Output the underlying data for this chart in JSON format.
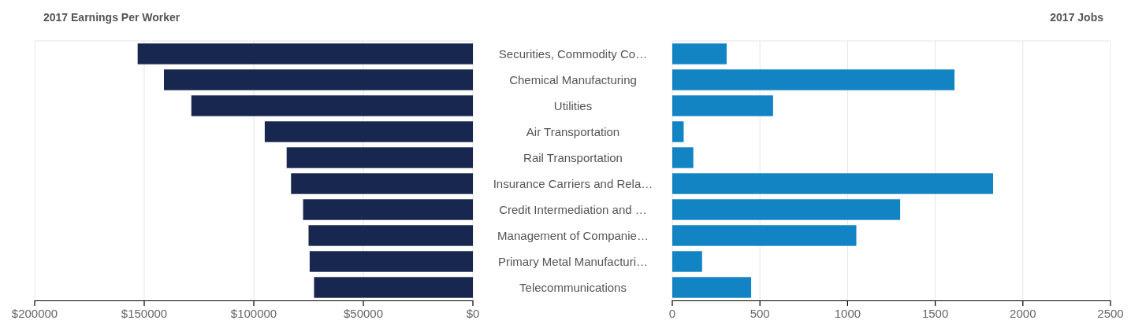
{
  "chart_data": [
    {
      "type": "bar",
      "orientation": "horizontal",
      "title": "2017 Earnings Per Worker",
      "categories": [
        "Securities, Commodity Co…",
        "Chemical Manufacturing",
        "Utilities",
        "Air Transportation",
        "Rail Transportation",
        "Insurance Carriers and Rela…",
        "Credit Intermediation and …",
        "Management of Companie…",
        "Primary Metal Manufacturi…",
        "Telecommunications"
      ],
      "values": [
        153000,
        141000,
        128500,
        95000,
        85000,
        83000,
        77500,
        75000,
        74500,
        72500
      ],
      "color": "#17274f",
      "xlim": [
        200000,
        0
      ],
      "xticks": [
        {
          "value": 200000,
          "label": "$200000"
        },
        {
          "value": 150000,
          "label": "$150000"
        },
        {
          "value": 100000,
          "label": "$100000"
        },
        {
          "value": 50000,
          "label": "$50000"
        },
        {
          "value": 0,
          "label": "$0"
        }
      ],
      "grid": "x"
    },
    {
      "type": "bar",
      "orientation": "horizontal",
      "title": "2017 Jobs",
      "categories": [
        null,
        null,
        null,
        null,
        null,
        null,
        null,
        null,
        null,
        null
      ],
      "values": [
        310,
        1610,
        575,
        65,
        120,
        1830,
        1300,
        1050,
        170,
        450
      ],
      "color": "#1284c4",
      "xlim": [
        0,
        2500
      ],
      "xticks": [
        0,
        500,
        1000,
        1500,
        2000,
        2500
      ],
      "grid": "x"
    }
  ]
}
